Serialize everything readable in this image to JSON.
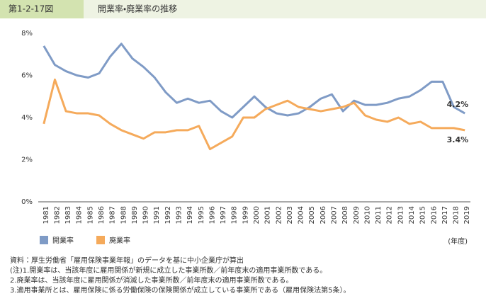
{
  "chart_data": {
    "type": "line",
    "figure_number": "第1-2-17図",
    "title": "開業率・廃業率の推移",
    "x_label": "(年度)",
    "categories": [
      "1981",
      "1982",
      "1983",
      "1984",
      "1985",
      "1986",
      "1987",
      "1988",
      "1989",
      "1990",
      "1991",
      "1992",
      "1993",
      "1994",
      "1995",
      "1996",
      "1997",
      "1998",
      "1999",
      "2000",
      "2001",
      "2002",
      "2003",
      "2004",
      "2005",
      "2006",
      "2007",
      "2008",
      "2009",
      "2010",
      "2011",
      "2012",
      "2013",
      "2014",
      "2015",
      "2016",
      "2017",
      "2018",
      "2019"
    ],
    "series": [
      {
        "name": "開業率",
        "color": "#7f9bc6",
        "values": [
          7.4,
          6.5,
          6.2,
          6.0,
          5.9,
          6.1,
          6.9,
          7.5,
          6.8,
          6.4,
          5.9,
          5.2,
          4.7,
          4.9,
          4.7,
          4.8,
          4.3,
          4.0,
          4.5,
          5.0,
          4.5,
          4.2,
          4.1,
          4.2,
          4.5,
          4.9,
          5.1,
          4.3,
          4.8,
          4.6,
          4.6,
          4.7,
          4.9,
          5.0,
          5.3,
          5.7,
          5.7,
          4.5,
          4.2
        ],
        "value_labels": [
          null,
          null,
          null,
          null,
          null,
          null,
          null,
          null,
          null,
          null,
          null,
          null,
          null,
          null,
          null,
          null,
          null,
          null,
          null,
          null,
          null,
          null,
          null,
          null,
          null,
          null,
          null,
          null,
          null,
          null,
          null,
          null,
          null,
          null,
          null,
          null,
          null,
          null,
          "4.2%"
        ]
      },
      {
        "name": "廃業率",
        "color": "#f5aa5b",
        "values": [
          3.7,
          5.8,
          4.3,
          4.2,
          4.2,
          4.1,
          3.7,
          3.4,
          3.2,
          3.0,
          3.3,
          3.3,
          3.4,
          3.4,
          3.6,
          2.5,
          2.8,
          3.1,
          4.0,
          4.0,
          4.4,
          4.6,
          4.8,
          4.5,
          4.4,
          4.3,
          4.4,
          4.5,
          4.7,
          4.1,
          3.9,
          3.8,
          4.0,
          3.7,
          3.8,
          3.5,
          3.5,
          3.5,
          3.4
        ],
        "value_labels": [
          null,
          null,
          null,
          null,
          null,
          null,
          null,
          null,
          null,
          null,
          null,
          null,
          null,
          null,
          null,
          null,
          null,
          null,
          null,
          null,
          null,
          null,
          null,
          null,
          null,
          null,
          null,
          null,
          null,
          null,
          null,
          null,
          null,
          null,
          null,
          null,
          null,
          null,
          "3.4%"
        ]
      }
    ],
    "ylim": [
      0,
      8
    ],
    "yticks": [
      {
        "value": 0,
        "label": "0%"
      },
      {
        "value": 2,
        "label": "2%"
      },
      {
        "value": 4,
        "label": "4%"
      },
      {
        "value": 6,
        "label": "6%"
      },
      {
        "value": 8,
        "label": "8%"
      }
    ],
    "grid": false,
    "legend": "bottom-left"
  },
  "notes": {
    "source": "資料：厚生労働省「雇用保険事業年報」のデータを基に中小企業庁が算出",
    "lines": [
      "(注)1.開業率は、当該年度に雇用関係が新規に成立した事業所数／前年度末の適用事業所数である。",
      "2.廃業率は、当該年度に雇用関係が消滅した事業所数／前年度末の適用事業所数である。",
      "3.適用事業所とは、雇用保険に係る労働保険の保険関係が成立している事業所である（雇用保険法第5条）。"
    ]
  }
}
